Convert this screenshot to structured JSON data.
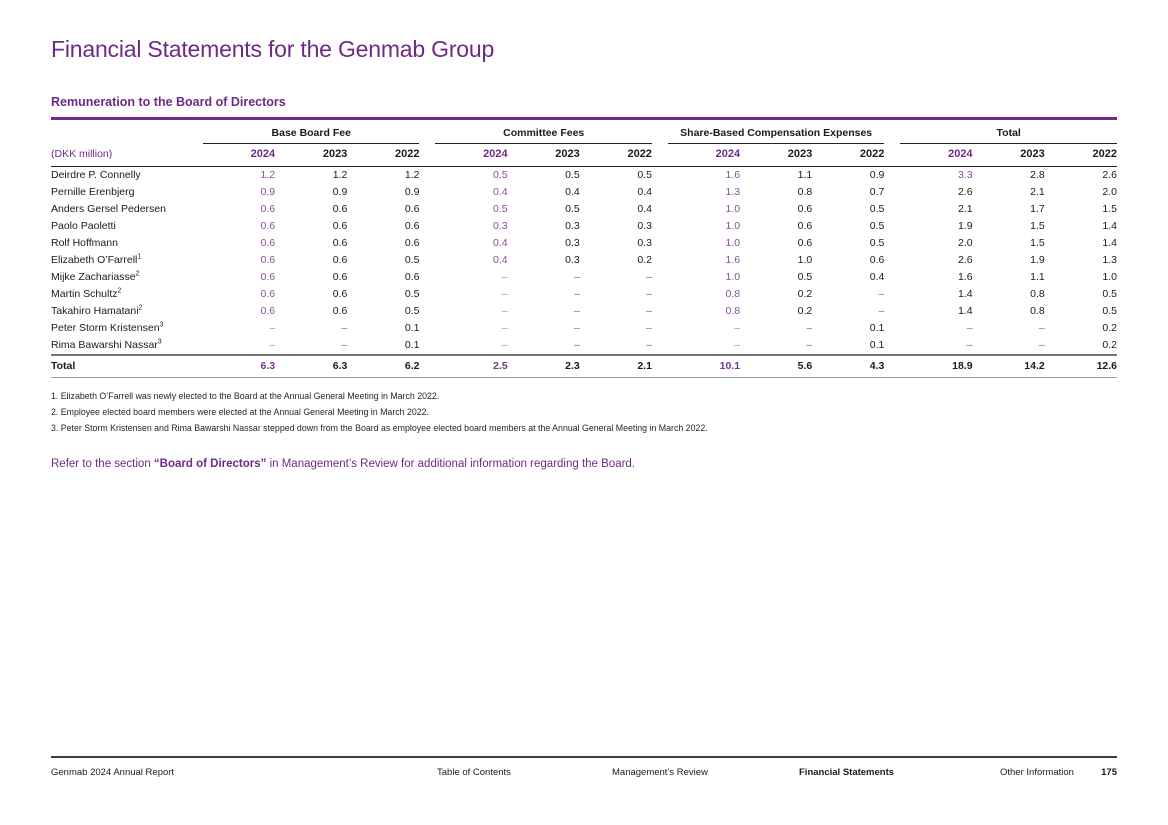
{
  "page": {
    "title": "Financial Statements for the Genmab Group",
    "section_heading": "Remuneration to the Board of Directors"
  },
  "colors": {
    "accent": "#6E2A86",
    "value_accent": "#8A4C9F"
  },
  "table": {
    "unit_label": "(DKK million)",
    "groups": [
      "Base Board Fee",
      "Committee Fees",
      "Share-Based Compensation Expenses",
      "Total"
    ],
    "years": [
      "2024",
      "2023",
      "2022"
    ],
    "rows": [
      {
        "name": "Deirdre P. Connelly",
        "sup": "",
        "values": [
          "1.2",
          "1.2",
          "1.2",
          "0.5",
          "0.5",
          "0.5",
          "1.6",
          "1.1",
          "0.9",
          "3.3",
          "2.8",
          "2.6"
        ],
        "purple": [
          0,
          3,
          6,
          9
        ]
      },
      {
        "name": "Pernille Erenbjerg",
        "sup": "",
        "values": [
          "0.9",
          "0.9",
          "0.9",
          "0.4",
          "0.4",
          "0.4",
          "1.3",
          "0.8",
          "0.7",
          "2.6",
          "2.1",
          "2.0"
        ],
        "purple": [
          0,
          3,
          6
        ]
      },
      {
        "name": "Anders Gersel Pedersen",
        "sup": "",
        "values": [
          "0.6",
          "0.6",
          "0.6",
          "0.5",
          "0.5",
          "0.4",
          "1.0",
          "0.6",
          "0.5",
          "2.1",
          "1.7",
          "1.5"
        ],
        "purple": [
          0,
          3,
          6
        ]
      },
      {
        "name": "Paolo Paoletti",
        "sup": "",
        "values": [
          "0.6",
          "0.6",
          "0.6",
          "0.3",
          "0.3",
          "0.3",
          "1.0",
          "0.6",
          "0.5",
          "1.9",
          "1.5",
          "1.4"
        ],
        "purple": [
          0,
          3,
          6
        ]
      },
      {
        "name": "Rolf Hoffmann",
        "sup": "",
        "values": [
          "0.6",
          "0.6",
          "0.6",
          "0.4",
          "0.3",
          "0.3",
          "1.0",
          "0.6",
          "0.5",
          "2.0",
          "1.5",
          "1.4"
        ],
        "purple": [
          0,
          3,
          6
        ]
      },
      {
        "name": "Elizabeth O’Farrell",
        "sup": "1",
        "values": [
          "0.6",
          "0.6",
          "0.5",
          "0.4",
          "0.3",
          "0.2",
          "1.6",
          "1.0",
          "0.6",
          "2.6",
          "1.9",
          "1.3"
        ],
        "purple": [
          0,
          3,
          6
        ]
      },
      {
        "name": "Mijke Zachariasse",
        "sup": "2",
        "values": [
          "0.6",
          "0.6",
          "0.6",
          "–",
          "–",
          "–",
          "1.0",
          "0.5",
          "0.4",
          "1.6",
          "1.1",
          "1.0"
        ],
        "purple": [
          0,
          3,
          6
        ]
      },
      {
        "name": "Martin Schultz",
        "sup": "2",
        "values": [
          "0.6",
          "0.6",
          "0.5",
          "–",
          "–",
          "–",
          "0.8",
          "0.2",
          "–",
          "1.4",
          "0.8",
          "0.5"
        ],
        "purple": [
          0,
          3,
          6
        ]
      },
      {
        "name": "Takahiro Hamatani",
        "sup": "2",
        "values": [
          "0.6",
          "0.6",
          "0.5",
          "–",
          "–",
          "–",
          "0.8",
          "0.2",
          "–",
          "1.4",
          "0.8",
          "0.5"
        ],
        "purple": [
          0,
          3,
          6
        ]
      },
      {
        "name": "Peter Storm Kristensen",
        "sup": "3",
        "values": [
          "–",
          "–",
          "0.1",
          "–",
          "–",
          "–",
          "–",
          "–",
          "0.1",
          "–",
          "–",
          "0.2"
        ],
        "purple": [
          0,
          3,
          6
        ]
      },
      {
        "name": "Rima Bawarshi Nassar",
        "sup": "3",
        "values": [
          "–",
          "–",
          "0.1",
          "–",
          "–",
          "–",
          "–",
          "–",
          "0.1",
          "–",
          "–",
          "0.2"
        ],
        "purple": [
          0,
          3,
          6
        ]
      }
    ],
    "total": {
      "name": "Total",
      "sup": "",
      "values": [
        "6.3",
        "6.3",
        "6.2",
        "2.5",
        "2.3",
        "2.1",
        "10.1",
        "5.6",
        "4.3",
        "18.9",
        "14.2",
        "12.6"
      ],
      "purple": [
        0,
        3,
        6
      ]
    }
  },
  "footnotes": [
    "1. Elizabeth O’Farrell was newly elected to the Board at the Annual General Meeting in March 2022.",
    "2. Employee elected board members were elected at the Annual General Meeting in March 2022.",
    "3. Peter Storm Kristensen and Rima Bawarshi Nassar stepped down from the Board as employee elected board members at the Annual General Meeting in March 2022."
  ],
  "note": {
    "prefix": "Refer to the section ",
    "bold": "“Board of Directors”",
    "suffix": " in Management’s Review for additional information regarding the Board."
  },
  "footer": {
    "report": "Genmab 2024 Annual Report",
    "nav": [
      {
        "label": "Table of Contents",
        "active": false
      },
      {
        "label": "Management’s Review",
        "active": false
      },
      {
        "label": "Financial Statements",
        "active": true
      },
      {
        "label": "Other Information",
        "active": false
      }
    ],
    "page": "175"
  }
}
